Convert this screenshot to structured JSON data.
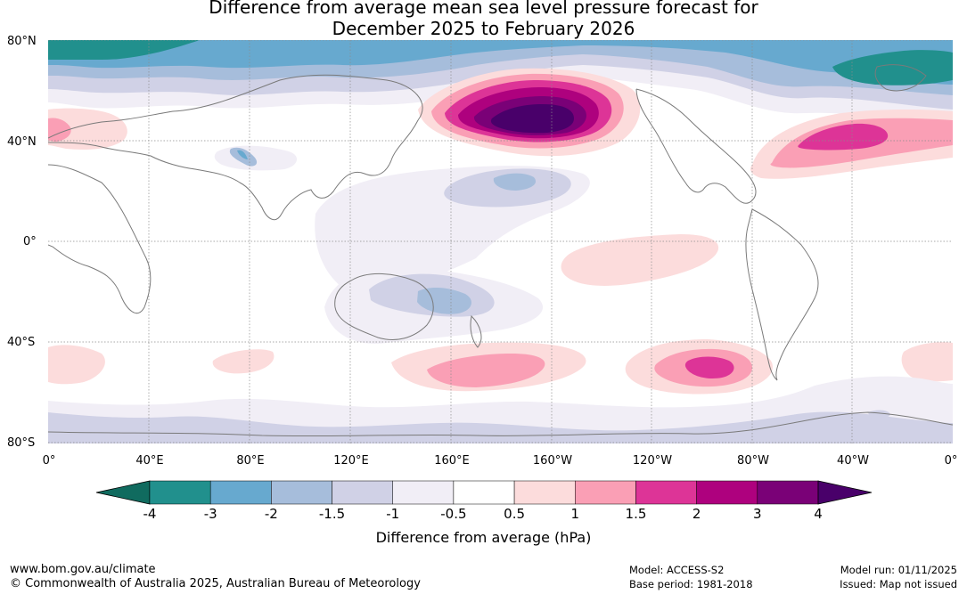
{
  "title": {
    "line1": "Difference from average mean sea level pressure forecast for",
    "line2": "December 2025 to February 2026"
  },
  "axes": {
    "lat_labels": [
      "80°N",
      "40°N",
      "0°",
      "40°S",
      "80°S"
    ],
    "lon_labels": [
      "0°",
      "40°E",
      "80°E",
      "120°E",
      "160°E",
      "160°W",
      "120°W",
      "80°W",
      "40°W",
      "0°"
    ]
  },
  "colorbar": {
    "labels": [
      "-4",
      "-3",
      "-2",
      "-1.5",
      "-1",
      "-0.5",
      "0.5",
      "1",
      "1.5",
      "2",
      "3",
      "4"
    ],
    "colors": [
      "#106b5f",
      "#21908d",
      "#67a9cf",
      "#a6bddb",
      "#d0d1e6",
      "#f1eef6",
      "#ffffff",
      "#fcdcdc",
      "#fa9fb5",
      "#dd3497",
      "#ae017e",
      "#7a0177",
      "#49006a"
    ],
    "title": "Difference from average (hPa)"
  },
  "map_data": {
    "type": "filled-contour",
    "variable": "mean sea level pressure anomaly",
    "units": "hPa",
    "features": [
      {
        "region": "North Pacific / Aleutian",
        "anomaly": "3 to 4+",
        "sign": "positive"
      },
      {
        "region": "North Atlantic",
        "anomaly": "1.5 to 2",
        "sign": "positive"
      },
      {
        "region": "South Pacific near 50°S 90°W",
        "anomaly": "1.5 to 2",
        "sign": "positive"
      },
      {
        "region": "Southern Ocean south of New Zealand",
        "anomaly": "1 to 1.5",
        "sign": "positive"
      },
      {
        "region": "Arctic",
        "anomaly": "-3 to -2",
        "sign": "negative"
      },
      {
        "region": "Australia / Tasman Sea",
        "anomaly": "-1.5 to -1",
        "sign": "negative"
      },
      {
        "region": "Antarctic margin",
        "anomaly": "-1 to -0.5",
        "sign": "negative"
      }
    ]
  },
  "footer": {
    "url": "www.bom.gov.au/climate",
    "copyright": "© Commonwealth of Australia 2025, Australian Bureau of Meteorology",
    "model": "Model: ACCESS-S2",
    "base_period": "Base period: 1981-2018",
    "model_run": "Model run: 01/11/2025",
    "issued": "Issued: Map not issued"
  }
}
